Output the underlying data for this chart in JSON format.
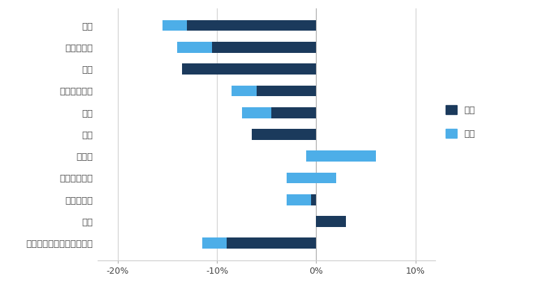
{
  "categories": [
    "韓国",
    "フィリピン",
    "中国",
    "シンガポール",
    "台湾",
    "香港",
    "インド",
    "インドネシア",
    "マレーシア",
    "タイ",
    "アジア株式（日本を除く）"
  ],
  "kabushiki": [
    -13.0,
    -10.5,
    -13.5,
    -6.0,
    -4.5,
    -6.5,
    6.0,
    2.0,
    -0.5,
    3.0,
    -9.0
  ],
  "tsuka": [
    -2.5,
    -3.5,
    0.0,
    -2.5,
    -3.0,
    0.0,
    -7.0,
    -5.0,
    -2.5,
    0.0,
    -2.5
  ],
  "kabushiki_color": "#1b3a5c",
  "tsuka_color": "#4daee8",
  "xlim": [
    -22,
    12
  ],
  "xticks": [
    -20,
    -10,
    0,
    10
  ],
  "xticklabels": [
    "-20%",
    "-10%",
    "0%",
    "10%"
  ],
  "legend_kabushiki": "株式",
  "legend_tsuka": "通貨",
  "background_color": "#ffffff",
  "bar_height": 0.5,
  "fontsize_labels": 9.5,
  "fontsize_ticks": 9,
  "grid_color": "#d0d0d0",
  "zero_line_color": "#aaaaaa"
}
